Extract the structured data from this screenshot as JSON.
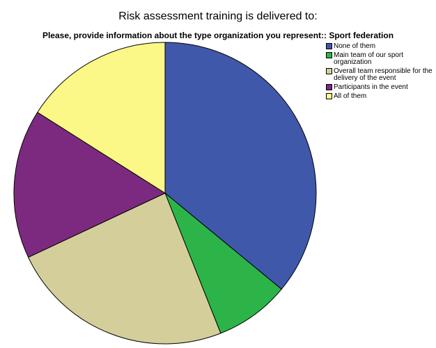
{
  "chart_data": {
    "type": "pie",
    "title": "Risk assessment training is delivered to:",
    "subtitle": "Please, provide information about the type organization you represent:: Sport federation",
    "categories": [
      "None of them",
      "Main team of our sport organization",
      "Overall team responsible for the delivery of the event",
      "Participants in the event",
      "All of them"
    ],
    "values": [
      36,
      8,
      24,
      16,
      16
    ],
    "colors": [
      "#3f58aa",
      "#2db449",
      "#d4cf9a",
      "#7c2a7f",
      "#fbf888"
    ]
  }
}
